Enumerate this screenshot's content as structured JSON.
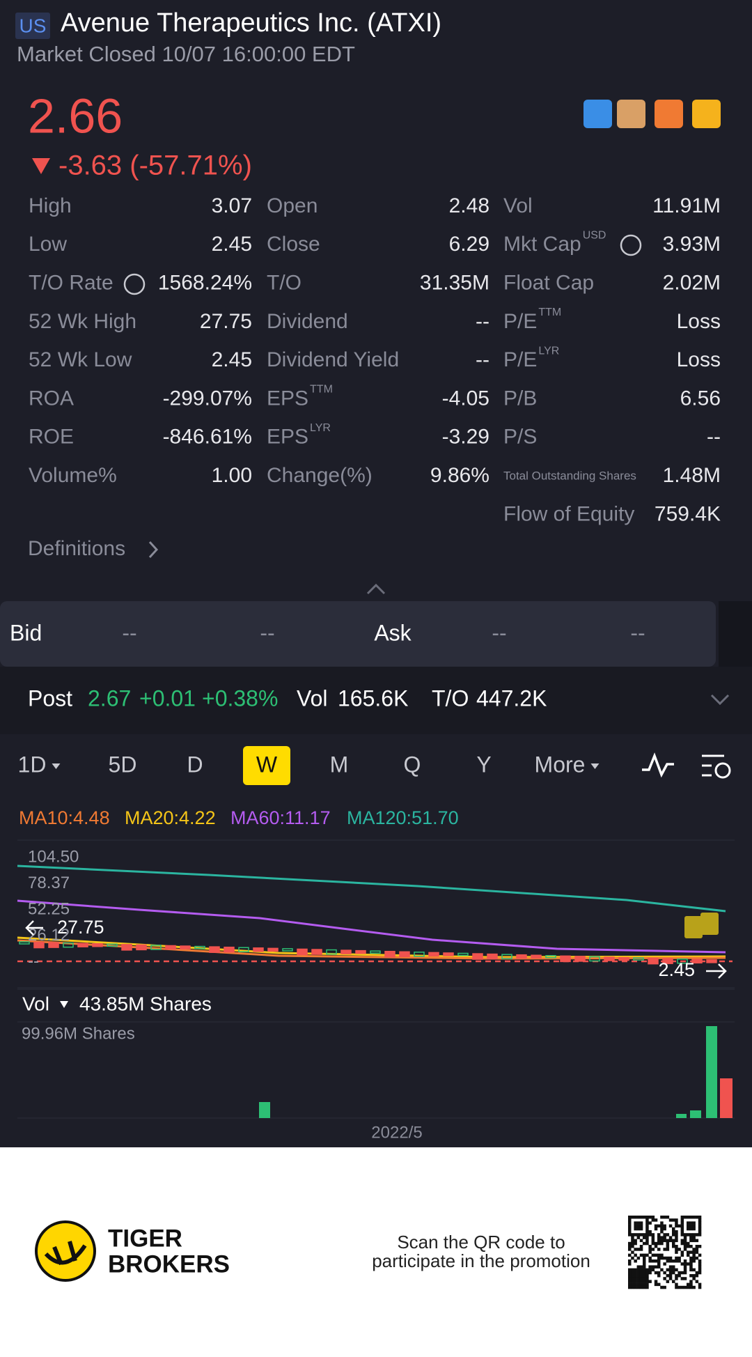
{
  "header": {
    "market": "US",
    "title": "Avenue Therapeutics Inc. (ATXI)",
    "status": "Market Closed 10/07 16:00:00 EDT"
  },
  "quote": {
    "price": "2.66",
    "change": "-3.63 (-57.71%)"
  },
  "stats": {
    "columns": [
      [
        {
          "label": "High",
          "value": "3.07"
        },
        {
          "label": "Low",
          "value": "2.45"
        },
        {
          "label": "T/O Rate",
          "value": "1568.24%"
        },
        {
          "label": "52 Wk High",
          "value": "27.75"
        },
        {
          "label": "52 Wk Low",
          "value": "2.45"
        },
        {
          "label": "ROA",
          "value": "-299.07%"
        },
        {
          "label": "ROE",
          "value": "-846.61%"
        },
        {
          "label": "Volume%",
          "value": "1.00"
        }
      ],
      [
        {
          "label": "Open",
          "value": "2.48"
        },
        {
          "label": "Close",
          "value": "6.29"
        },
        {
          "label": "T/O",
          "value": "31.35M"
        },
        {
          "label": "Dividend",
          "value": "--"
        },
        {
          "label": "Dividend Yield",
          "value": "--"
        },
        {
          "label": "EPS",
          "sup": "TTM",
          "value": "-4.05"
        },
        {
          "label": "EPS",
          "sup": "LYR",
          "value": "-3.29"
        },
        {
          "label": "Change(%)",
          "value": "9.86%"
        }
      ],
      [
        {
          "label": "Vol",
          "value": "11.91M"
        },
        {
          "label": "Mkt Cap",
          "sup": "USD",
          "value": "3.93M"
        },
        {
          "label": "Float Cap",
          "value": "2.02M"
        },
        {
          "label": "P/E",
          "sup": "TTM",
          "value": "Loss"
        },
        {
          "label": "P/E",
          "sup": "LYR",
          "value": "Loss"
        },
        {
          "label": "P/B",
          "value": "6.56"
        },
        {
          "label": "P/S",
          "value": "--"
        },
        {
          "label": "Total Outstanding Shares",
          "value": "1.48M"
        },
        {
          "label": "Flow of Equity",
          "value": "759.4K"
        }
      ]
    ]
  },
  "definitions": "Definitions",
  "bid_ask": [
    "Bid",
    "--",
    "--",
    "Ask",
    "--",
    "--"
  ],
  "post": {
    "label": "Post",
    "price": "2.67",
    "change": "+0.01",
    "percent": "+0.38%",
    "vol_label": "Vol",
    "vol": "165.6K",
    "to_label": "T/O",
    "to": "447.2K"
  },
  "tabs": {
    "items": [
      "1D",
      "5D",
      "D",
      "W",
      "M",
      "Q",
      "Y",
      "More"
    ],
    "active": 3
  },
  "ma": [
    "MA10:4.48",
    "MA20:4.22",
    "MA60:11.17",
    "MA120:51.70"
  ],
  "chart": {
    "axis_labels": [
      "104.50",
      "78.37",
      "52.25",
      "26.12",
      "--"
    ],
    "high_marker": "27.75",
    "low_marker": "2.45"
  },
  "volume": {
    "label": "Vol",
    "value": "43.85M Shares",
    "axis_label": "99.96M Shares",
    "date": "2022/5"
  },
  "footer": {
    "brand": [
      "TIGER",
      "BROKERS"
    ],
    "promo": [
      "Scan the QR code to",
      "participate in the promotion"
    ]
  }
}
